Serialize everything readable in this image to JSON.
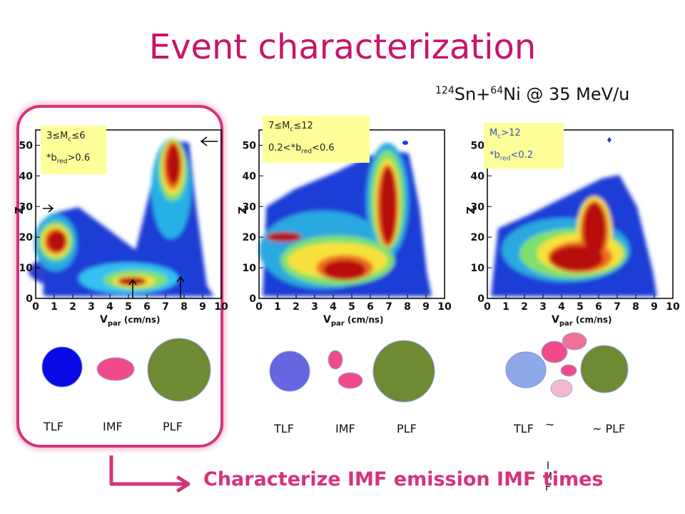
{
  "slide": {
    "title": "Event characterization",
    "reaction": {
      "a1": "124",
      "el1": "Sn+",
      "a2": "64",
      "el2": "Ni @ 35 MeV/u"
    },
    "bottom_text": "Characterize IMF emission IMF times",
    "vertical_label": [
      "I",
      "M",
      "F"
    ]
  },
  "panels": [
    {
      "cond_line1": {
        "pre": "3≤M",
        "sub": "c",
        "post": "≤6"
      },
      "cond_line2": {
        "pre": "*b",
        "sub": "red",
        "post": ">0.6"
      },
      "fragments": [
        "TLF",
        "IMF",
        "PLF"
      ]
    },
    {
      "cond_line1": {
        "pre": "7≤M",
        "sub": "c",
        "post": "≤12"
      },
      "cond_line2": {
        "pre": "0.2<*b",
        "sub": "red",
        "post": "<0.6"
      },
      "fragments": [
        "TLF",
        "IMF",
        "PLF"
      ]
    },
    {
      "cond_line1": {
        "pre": "M",
        "sub": "c",
        "post": ">12"
      },
      "cond_line2": {
        "pre": "*b",
        "sub": "red",
        "post": "<0.2"
      },
      "fragments": [
        "TLF",
        "~",
        "~ PLF"
      ]
    }
  ],
  "axes": {
    "x_ticks": [
      "0",
      "1",
      "2",
      "3",
      "4",
      "5",
      "6",
      "7",
      "8",
      "9",
      "10"
    ],
    "y_ticks": [
      "0",
      "10",
      "20",
      "30",
      "40",
      "50"
    ],
    "x_label_main": "V",
    "x_label_sub": "par",
    "x_label_unit": " (cm/ns)",
    "y_label": "Z"
  },
  "colors": {
    "accent": "#d6337a",
    "title": "#c8146b",
    "cond_bg": "#ffff99",
    "tlf_panel1": "#0a0ae6",
    "tlf_panel2": "#6666e0",
    "tlf_panel3": "#8fa8e8",
    "imf": "#f04a8a",
    "plf": "#6e8a32",
    "imf_light": "#f4b8cc"
  }
}
